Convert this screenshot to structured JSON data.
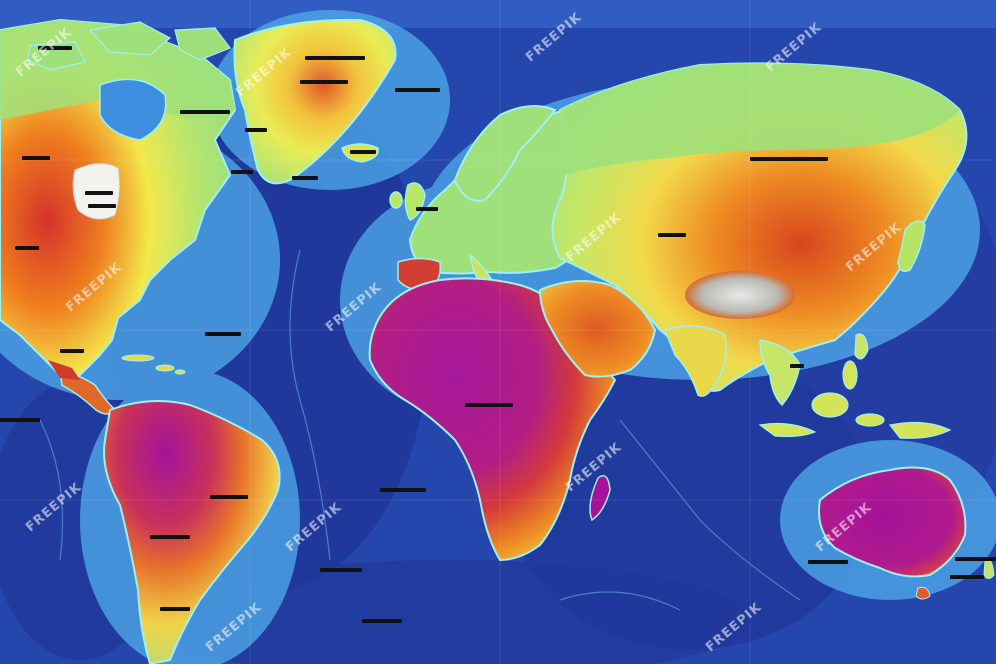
{
  "map": {
    "colors": {
      "deep_ocean": "#1d2f8e",
      "mid_ocean": "#2c5fc8",
      "shelf_ocean": "#4ea6e8",
      "coast_glow": "#8fe3f2",
      "lowland_green": "#9fe07a",
      "yellow": "#f2e94c",
      "orange": "#f2901f",
      "red": "#d4322a",
      "magenta": "#a4129a",
      "ice_white": "#f4f4f0"
    },
    "legend_scale": [
      "deep_ocean",
      "mid_ocean",
      "shelf_ocean",
      "lowland_green",
      "yellow",
      "orange",
      "red",
      "magenta"
    ]
  },
  "watermark": {
    "text": "FREEPIK"
  }
}
